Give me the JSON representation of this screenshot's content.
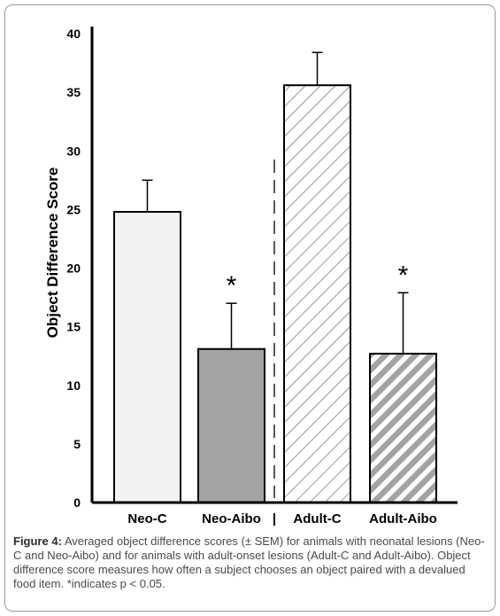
{
  "chart_data": {
    "type": "bar",
    "ylabel": "Object Difference Score",
    "xlabel": "",
    "ylim": [
      0,
      40
    ],
    "yticks": [
      0,
      5,
      10,
      15,
      20,
      25,
      30,
      35,
      40
    ],
    "categories": [
      "Neo-C",
      "Neo-Aibo",
      "Adult-C",
      "Adult-Aibo"
    ],
    "values": [
      24.8,
      13.1,
      35.6,
      12.7
    ],
    "sem": [
      2.7,
      3.9,
      2.8,
      5.2
    ],
    "significant": [
      false,
      true,
      false,
      true
    ],
    "significance_marker": "*",
    "group_separator": "|",
    "fills": [
      "light-gray",
      "dark-gray",
      "light-hatched",
      "gray-hatched"
    ],
    "grid": false
  },
  "colors": {
    "bar_light": "#f2f2f2",
    "bar_dark": "#a3a3a3",
    "hatch_light": "#555555",
    "hatch_gray": "#a3a3a3",
    "axis": "#000000"
  },
  "caption": {
    "label": "Figure 4:",
    "text": "Averaged object difference scores (± SEM) for animals with neonatal lesions (Neo-C and Neo-Aibo) and for animals with adult-onset lesions (Adult-C and Adult-Aibo). Object difference score measures how often a subject chooses an object paired with a devalued food item. *indicates p < 0.05."
  }
}
